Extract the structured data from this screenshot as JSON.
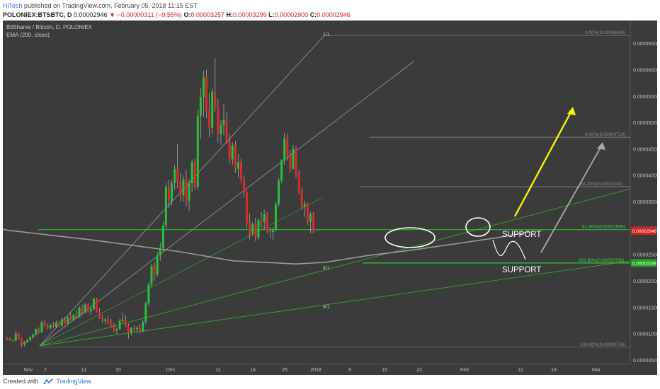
{
  "header": {
    "author": "HiTech",
    "published": "published on TradingView.com, February 05, 2018 11:15 EST",
    "symbol": "POLONIEX:BTSBTC, D",
    "last": "0.00002946",
    "change": "▼ −0.00000311 (−9.55%)",
    "o_label": "O:",
    "o": "0.00003257",
    "h_label": "H:",
    "h": "0.00003299",
    "l_label": "L:",
    "l": "0.00002900",
    "c_label": "C:",
    "c": "0.00002946"
  },
  "legend": {
    "title": "BitShares / Bitcoin, D, POLONIEX",
    "indicator": "EMA (200, close)"
  },
  "colors": {
    "background": "#3b3b3b",
    "up": "#27c23a",
    "down": "#e02929",
    "ema": "#9a9a9a",
    "fib_green": "#2ea82e",
    "arrow_yellow": "#f2f20a",
    "arrow_gray": "#a9a9a9",
    "price_tag": "#d32020",
    "support_tag": "#22a422"
  },
  "chart_data": {
    "type": "candlestick",
    "title": "BitShares / Bitcoin, D, POLONIEX",
    "x_ticks": [
      "Nov",
      "7",
      "13",
      "20",
      "Dec",
      "11",
      "18",
      "25",
      "2018",
      "8",
      "15",
      "22",
      "Feb",
      "12",
      "19",
      "Mar"
    ],
    "y_ticks": [
      "0.00000500",
      "0.00001000",
      "0.00001500",
      "0.00002000",
      "0.00002500",
      "0.00003000",
      "0.00003500",
      "0.00004000",
      "0.00004500",
      "0.00005000",
      "0.00005500",
      "0.00006000",
      "0.00006500"
    ],
    "ylim": [
      4.2e-06,
      6.93e-05
    ],
    "grid": false,
    "last_price_label": "0.00002946",
    "support_price_label": "0.00002338",
    "indicator": "EMA (200, close)",
    "candles": [
      [
        9.1e-06,
        9.4e-06,
        8.7e-06,
        9e-06
      ],
      [
        9e-06,
        9.3e-06,
        8.6e-06,
        8.8e-06
      ],
      [
        8.8e-06,
        9e-06,
        8.4e-06,
        8.7e-06
      ],
      [
        8.7e-06,
        1.05e-05,
        8.5e-06,
        1e-05
      ],
      [
        1e-05,
        1.02e-05,
        8.8e-06,
        9e-06
      ],
      [
        9e-06,
        9.2e-06,
        7.4e-06,
        7.9e-06
      ],
      [
        7.9e-06,
        8.6e-06,
        7.6e-06,
        8.4e-06
      ],
      [
        8.4e-06,
        9e-06,
        8.2e-06,
        8.8e-06
      ],
      [
        8.8e-06,
        9.5e-06,
        8.5e-06,
        9.3e-06
      ],
      [
        9.3e-06,
        1e-05,
        9e-06,
        9.8e-06
      ],
      [
        9.8e-06,
        1.1e-05,
        9.6e-06,
        1.08e-05
      ],
      [
        1.08e-05,
        1.12e-05,
        1e-05,
        1.03e-05
      ],
      [
        1.03e-05,
        1.25e-05,
        1.01e-05,
        1.22e-05
      ],
      [
        1.22e-05,
        1.26e-05,
        1.12e-05,
        1.15e-05
      ],
      [
        1.15e-05,
        1.2e-05,
        1.08e-05,
        1.11e-05
      ],
      [
        1.11e-05,
        1.18e-05,
        1.07e-05,
        1.16e-05
      ],
      [
        1.16e-05,
        1.22e-05,
        1.1e-05,
        1.13e-05
      ],
      [
        1.13e-05,
        1.25e-05,
        1.11e-05,
        1.21e-05
      ],
      [
        1.21e-05,
        1.24e-05,
        1.13e-05,
        1.15e-05
      ],
      [
        1.15e-05,
        1.3e-05,
        1.12e-05,
        1.27e-05
      ],
      [
        1.27e-05,
        1.32e-05,
        1.18e-05,
        1.2e-05
      ],
      [
        1.2e-05,
        1.33e-05,
        1.18e-05,
        1.31e-05
      ],
      [
        1.31e-05,
        1.4e-05,
        1.24e-05,
        1.26e-05
      ],
      [
        1.26e-05,
        1.38e-05,
        1.24e-05,
        1.35e-05
      ],
      [
        1.35e-05,
        1.45e-05,
        1.28e-05,
        1.31e-05
      ],
      [
        1.31e-05,
        1.52e-05,
        1.3e-05,
        1.49e-05
      ],
      [
        1.49e-05,
        1.55e-05,
        1.36e-05,
        1.4e-05
      ],
      [
        1.4e-05,
        1.58e-05,
        1.38e-05,
        1.55e-05
      ],
      [
        1.55e-05,
        1.58e-05,
        1.4e-05,
        1.42e-05
      ],
      [
        1.42e-05,
        1.5e-05,
        1.35e-05,
        1.46e-05
      ],
      [
        1.46e-05,
        1.68e-05,
        1.44e-05,
        1.66e-05
      ],
      [
        1.66e-05,
        1.68e-05,
        1.4e-05,
        1.42e-05
      ],
      [
        1.42e-05,
        1.48e-05,
        1.28e-05,
        1.31e-05
      ],
      [
        1.31e-05,
        1.36e-05,
        1.2e-05,
        1.24e-05
      ],
      [
        1.24e-05,
        1.3e-05,
        1.18e-05,
        1.27e-05
      ],
      [
        1.27e-05,
        1.33e-05,
        1.17e-05,
        1.2e-05
      ],
      [
        1.2e-05,
        1.28e-05,
        1.12e-05,
        1.14e-05
      ],
      [
        1.14e-05,
        1.2e-05,
        1.02e-05,
        1.06e-05
      ],
      [
        1.06e-05,
        1.12e-05,
        9.8e-06,
        1.09e-05
      ],
      [
        1.09e-05,
        1.28e-05,
        1.07e-05,
        1.24e-05
      ],
      [
        1.24e-05,
        1.4e-05,
        1.2e-05,
        1.26e-05
      ],
      [
        1.26e-05,
        1.35e-05,
        1.12e-05,
        1.16e-05
      ],
      [
        1.16e-05,
        1.19e-05,
        9e-06,
        1.01e-05
      ],
      [
        1.01e-05,
        1.13e-05,
        9.6e-06,
        1.1e-05
      ],
      [
        1.1e-05,
        1.16e-05,
        1.03e-05,
        1.08e-05
      ],
      [
        1.08e-05,
        1.14e-05,
        1.02e-05,
        1.11e-05
      ],
      [
        1.11e-05,
        1.18e-05,
        1e-05,
        1.04e-05
      ],
      [
        1.04e-05,
        1.26e-05,
        1.02e-05,
        1.22e-05
      ],
      [
        1.22e-05,
        1.6e-05,
        1.18e-05,
        1.57e-05
      ],
      [
        1.57e-05,
        1.97e-05,
        1.52e-05,
        1.93e-05
      ],
      [
        1.93e-05,
        2.32e-05,
        1.88e-05,
        2.28e-05
      ],
      [
        2.28e-05,
        2.35e-05,
        2e-05,
        2.12e-05
      ],
      [
        2.12e-05,
        2.55e-05,
        2.08e-05,
        2.48e-05
      ],
      [
        2.48e-05,
        2.72e-05,
        2.38e-05,
        2.62e-05
      ],
      [
        2.62e-05,
        3.12e-05,
        2.56e-05,
        3.05e-05
      ],
      [
        3.05e-05,
        3.85e-05,
        2.98e-05,
        3.78e-05
      ],
      [
        3.78e-05,
        3.92e-05,
        3.38e-05,
        3.5e-05
      ],
      [
        3.5e-05,
        3.92e-05,
        3.42e-05,
        3.85e-05
      ],
      [
        3.85e-05,
        4.2e-05,
        3.72e-05,
        4.12e-05
      ],
      [
        4.12e-05,
        4.6e-05,
        3.75e-05,
        3.88e-05
      ],
      [
        3.88e-05,
        4.05e-05,
        3.5e-05,
        3.62e-05
      ],
      [
        3.62e-05,
        4e-05,
        3.5e-05,
        3.92e-05
      ],
      [
        3.92e-05,
        4.1e-05,
        3.4e-05,
        3.52e-05
      ],
      [
        3.52e-05,
        3.92e-05,
        3.32e-05,
        3.85e-05
      ],
      [
        3.85e-05,
        4.3e-05,
        3.68e-05,
        4.25e-05
      ],
      [
        4.25e-05,
        4.32e-05,
        3.72e-05,
        3.78e-05
      ],
      [
        3.78e-05,
        5.25e-05,
        3.72e-05,
        5.12e-05
      ],
      [
        5.12e-05,
        5.65e-05,
        4.68e-05,
        5.48e-05
      ],
      [
        5.48e-05,
        5.98e-05,
        5.1e-05,
        5.85e-05
      ],
      [
        5.85e-05,
        6e-05,
        5.08e-05,
        5.22e-05
      ],
      [
        5.22e-05,
        5.55e-05,
        4.72e-05,
        4.9e-05
      ],
      [
        4.9e-05,
        5.65e-05,
        4.78e-05,
        5.58e-05
      ],
      [
        5.58e-05,
        6.22e-05,
        5.2e-05,
        5.3e-05
      ],
      [
        5.3e-05,
        5.45e-05,
        4.62e-05,
        4.78e-05
      ],
      [
        4.78e-05,
        5.05e-05,
        4.58e-05,
        4.95e-05
      ],
      [
        4.95e-05,
        5.35e-05,
        4.75e-05,
        5.05e-05
      ],
      [
        5.05e-05,
        5.2e-05,
        4.6e-05,
        4.65e-05
      ],
      [
        4.65e-05,
        4.78e-05,
        4.22e-05,
        4.3e-05
      ],
      [
        4.3e-05,
        4.62e-05,
        4.2e-05,
        4.56e-05
      ],
      [
        4.56e-05,
        4.65e-05,
        4.05e-05,
        4.12e-05
      ],
      [
        4.12e-05,
        4.4e-05,
        3.95e-05,
        4.25e-05
      ],
      [
        4.25e-05,
        4.32e-05,
        3.85e-05,
        3.92e-05
      ],
      [
        3.92e-05,
        4e-05,
        3.58e-05,
        3.68e-05
      ],
      [
        3.68e-05,
        3.72e-05,
        3e-05,
        3.1e-05
      ],
      [
        3.1e-05,
        3.28e-05,
        2.78e-05,
        2.9e-05
      ],
      [
        2.9e-05,
        3.12e-05,
        2.86e-05,
        3.07e-05
      ],
      [
        3.07e-05,
        3.2e-05,
        2.75e-05,
        2.82e-05
      ],
      [
        2.82e-05,
        3.18e-05,
        2.78e-05,
        3.15e-05
      ],
      [
        3.15e-05,
        3.3e-05,
        3e-05,
        3.12e-05
      ],
      [
        3.12e-05,
        3.35e-05,
        2.98e-05,
        3.26e-05
      ],
      [
        3.26e-05,
        3.3e-05,
        2.9e-05,
        2.96e-05
      ],
      [
        2.96e-05,
        3.02e-05,
        2.82e-05,
        2.92e-05
      ],
      [
        2.92e-05,
        3.02e-05,
        2.76e-05,
        2.96e-05
      ],
      [
        2.96e-05,
        3.5e-05,
        2.94e-05,
        3.45e-05
      ],
      [
        3.45e-05,
        3.95e-05,
        3.4e-05,
        3.9e-05
      ],
      [
        3.9e-05,
        4.3e-05,
        3.85e-05,
        4.28e-05
      ],
      [
        4.28e-05,
        4.8e-05,
        4.2e-05,
        4.7e-05
      ],
      [
        4.7e-05,
        4.78e-05,
        4.28e-05,
        4.38e-05
      ],
      [
        4.38e-05,
        4.48e-05,
        4.05e-05,
        4.12e-05
      ],
      [
        4.12e-05,
        4.58e-05,
        4.1e-05,
        4.5e-05
      ],
      [
        4.5e-05,
        4.55e-05,
        3.95e-05,
        4.02e-05
      ],
      [
        4.02e-05,
        4.1e-05,
        3.65e-05,
        3.72e-05
      ],
      [
        3.72e-05,
        3.76e-05,
        3.35e-05,
        3.4e-05
      ],
      [
        3.4e-05,
        3.52e-05,
        3.2e-05,
        3.46e-05
      ],
      [
        3.46e-05,
        3.48e-05,
        3.06e-05,
        3.12e-05
      ],
      [
        3.12e-05,
        3.3e-05,
        2.9e-05,
        3.26e-05
      ],
      [
        3.26e-05,
        3.3e-05,
        2.9e-05,
        2.95e-05
      ]
    ],
    "ema_200": [
      [
        0,
        2.96e-05
      ],
      [
        30,
        2.77e-05
      ],
      [
        60,
        2.55e-05
      ],
      [
        78,
        2.38e-05
      ],
      [
        100,
        2.32e-05
      ],
      [
        110,
        2.35e-05
      ],
      [
        125,
        2.48e-05
      ],
      [
        140,
        2.58e-05
      ],
      [
        155,
        2.7e-05
      ],
      [
        170,
        2.82e-05
      ],
      [
        181,
        2.93e-05
      ]
    ],
    "horizontal_levels": [
      {
        "label": "0.00%(0.00006648)",
        "value": 6.648e-05
      },
      {
        "label": "0.00%(0.00004719)",
        "value": 4.719e-05
      },
      {
        "label": "38.20%(0.00003782)",
        "value": 3.782e-05
      },
      {
        "label": "61.80%(0.00002969)",
        "value": 2.969e-05
      },
      {
        "label": "261.80%(0.00002338)",
        "value": 2.338e-05
      },
      {
        "label": "100.00%(0.00000743)",
        "value": 7.43e-06
      }
    ],
    "gann_labels": [
      "1/1",
      "4/1",
      "8/1"
    ],
    "annotations": [
      "SUPPORT",
      "SUPPORT"
    ]
  },
  "footer": {
    "created_with": "Created with",
    "brand": "TradingView"
  }
}
